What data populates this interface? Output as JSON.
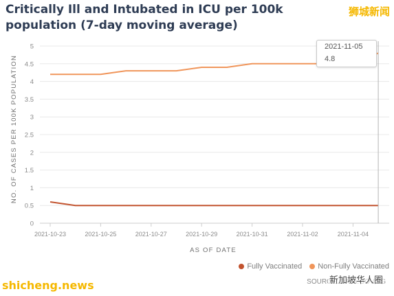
{
  "title": "Critically Ill and Intubated in ICU per 100k population (7-day moving average)",
  "watermark_top": "狮城新闻",
  "watermark_bottom_left": "shicheng.news",
  "watermark_bottom_right": "新加坡华人圈",
  "source": "SOURCE: DATA.GOV.SG",
  "tooltip": {
    "date": "2021-11-05",
    "value": "4.8"
  },
  "colors": {
    "fully": "#c2532e",
    "non_fully": "#f0955a",
    "grid": "#e8e8e8",
    "crosshair": "#b5b5b5"
  },
  "chart_data": {
    "type": "line",
    "title": "Critically Ill and Intubated in ICU per 100k population (7-day moving average)",
    "xlabel": "AS OF DATE",
    "ylabel": "NO. OF CASES PER 100K POPULATION",
    "x": [
      "2021-10-23",
      "2021-10-24",
      "2021-10-25",
      "2021-10-26",
      "2021-10-27",
      "2021-10-28",
      "2021-10-29",
      "2021-10-30",
      "2021-10-31",
      "2021-11-01",
      "2021-11-02",
      "2021-11-03",
      "2021-11-04",
      "2021-11-05"
    ],
    "xtick_labels": [
      "2021-10-23",
      "2021-10-25",
      "2021-10-27",
      "2021-10-29",
      "2021-10-31",
      "2021-11-02",
      "2021-11-04"
    ],
    "ylim": [
      0,
      5
    ],
    "yticks": [
      "0",
      "0.5",
      "1",
      "1.5",
      "2",
      "2.5",
      "3",
      "3.5",
      "4",
      "4.5",
      "5"
    ],
    "grid": true,
    "legend_position": "bottom-right",
    "series": [
      {
        "name": "Fully Vaccinated",
        "values": [
          0.6,
          0.5,
          0.5,
          0.5,
          0.5,
          0.5,
          0.5,
          0.5,
          0.5,
          0.5,
          0.5,
          0.5,
          0.5,
          0.5
        ]
      },
      {
        "name": "Non-Fully Vaccinated",
        "values": [
          4.2,
          4.2,
          4.2,
          4.3,
          4.3,
          4.3,
          4.4,
          4.4,
          4.5,
          4.5,
          4.5,
          4.5,
          4.5,
          4.8
        ]
      }
    ]
  }
}
